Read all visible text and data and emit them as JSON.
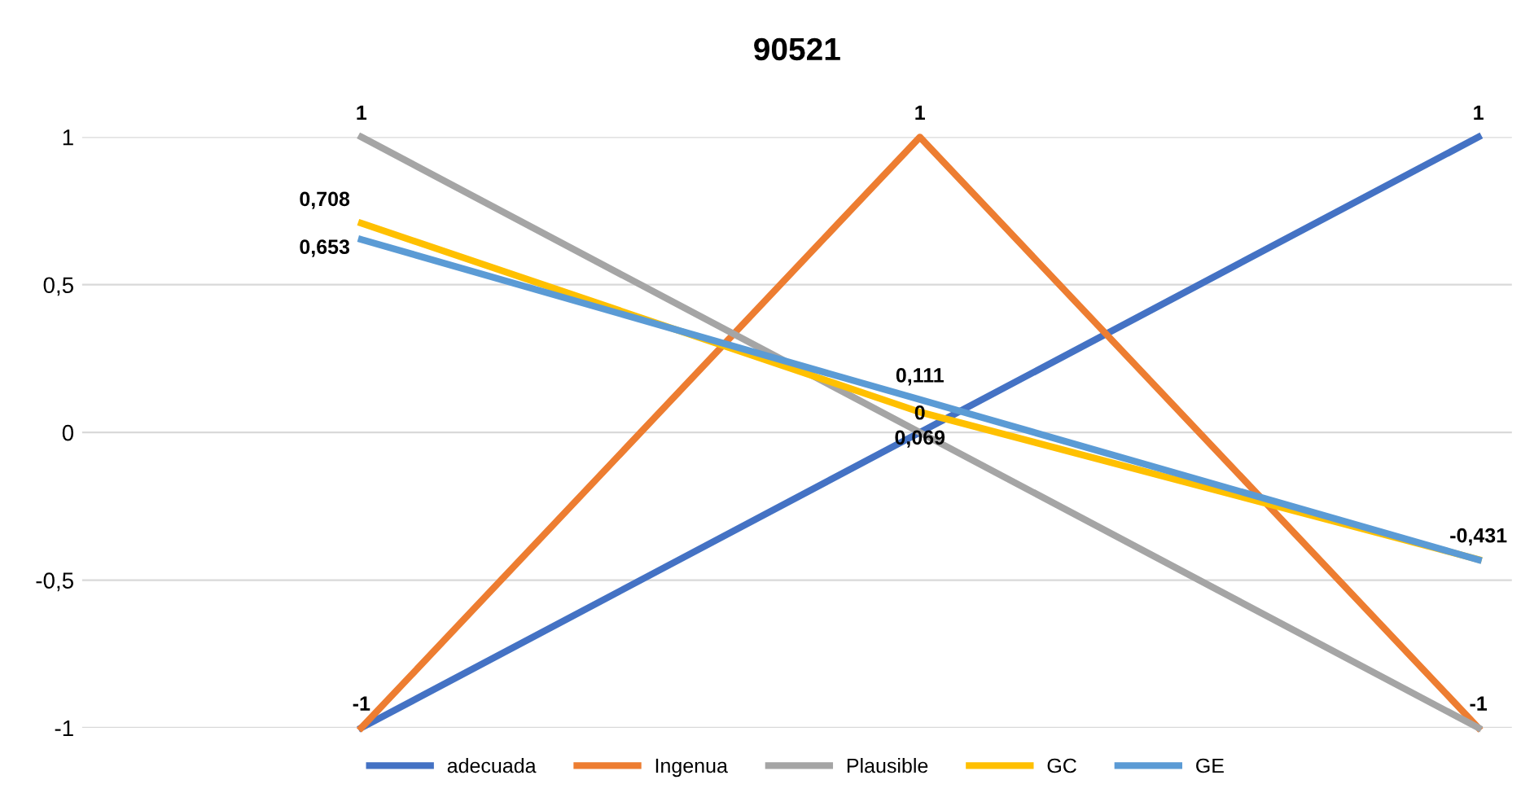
{
  "chart_data": {
    "type": "line",
    "title": "90521",
    "categories": [
      null,
      null,
      null
    ],
    "series": [
      {
        "name": "adecuada",
        "color": "#4472c4",
        "values": [
          -1,
          0,
          1
        ],
        "value_labels": [
          "-1",
          "0",
          "1"
        ]
      },
      {
        "name": "Ingenua",
        "color": "#ed7d31",
        "values": [
          -1,
          1,
          -1
        ],
        "value_labels": [
          null,
          "1",
          "-1"
        ]
      },
      {
        "name": "Plausible",
        "color": "#a5a5a5",
        "values": [
          1,
          0,
          -1
        ],
        "value_labels": [
          "1",
          null,
          null
        ]
      },
      {
        "name": "GC",
        "color": "#ffc000",
        "values": [
          0.708,
          0.069,
          -0.43
        ],
        "value_labels": [
          "0,708",
          "0,069",
          null
        ]
      },
      {
        "name": "GE",
        "color": "#5b9bd5",
        "values": [
          0.653,
          0.111,
          -0.431
        ],
        "value_labels": [
          "0,653",
          "0,111",
          "-0,431"
        ]
      }
    ],
    "ylim": [
      -1,
      1
    ],
    "yticks": [
      {
        "value": -1,
        "label": "-1"
      },
      {
        "value": -0.5,
        "label": "-0,5"
      },
      0,
      {
        "value": 0.5,
        "label": "0,5"
      },
      1
    ],
    "grid": "y",
    "legend": "bottom",
    "marker": "none",
    "line_style": "solid"
  }
}
